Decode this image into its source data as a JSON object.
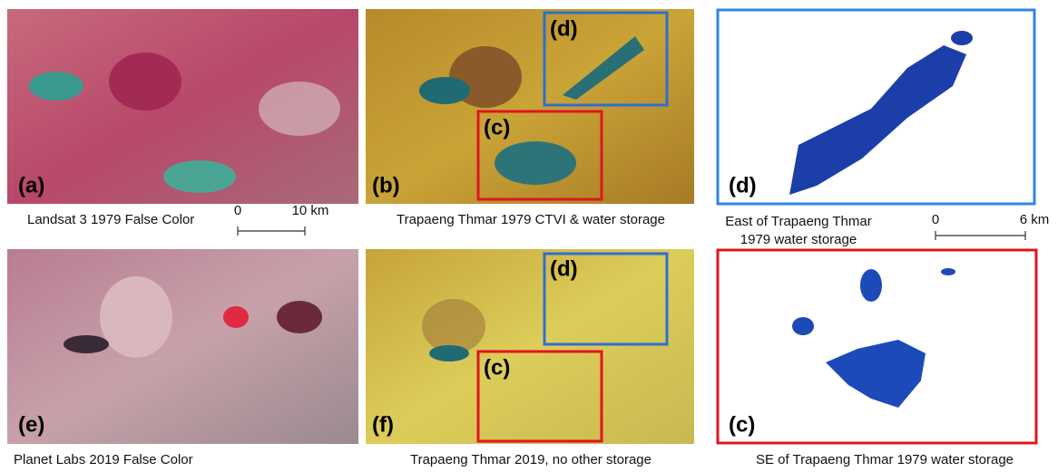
{
  "panels": [
    {
      "label": "(a)",
      "caption": "Landsat 3 1979 False Color"
    },
    {
      "label": "(b)",
      "caption": "Trapaeng Thmar 1979 CTVI & water storage",
      "insets": [
        "(d)",
        "(c)"
      ]
    },
    {
      "label": "(d)",
      "caption": [
        "East of Trapaeng Thmar",
        "1979 water storage"
      ]
    },
    {
      "label": "(e)",
      "caption": "Planet Labs  2019 False Color"
    },
    {
      "label": "(f)",
      "caption": "Trapaeng Thmar 2019, no other storage",
      "insets": [
        "(d)",
        "(c)"
      ]
    },
    {
      "label": "(c)",
      "caption": "SE of Trapaeng Thmar 1979 water storage"
    }
  ],
  "scale_bars": [
    {
      "start": "0",
      "end": "10 km"
    },
    {
      "start": "0",
      "end": "6 km"
    }
  ]
}
